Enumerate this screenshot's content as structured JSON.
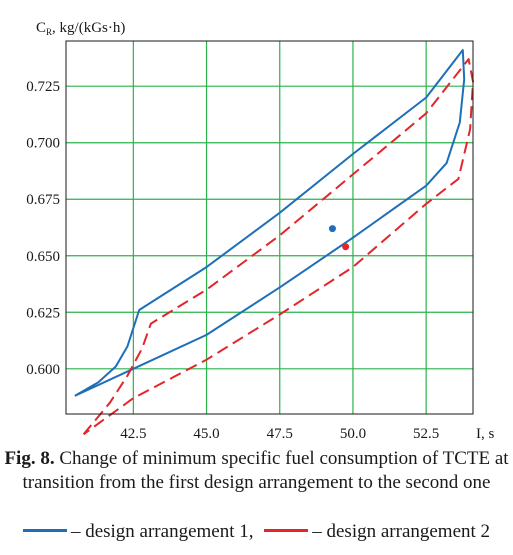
{
  "chart_data": {
    "type": "line",
    "xlabel": "I, s",
    "ylabel": {
      "main": "C",
      "sub": "R",
      "rest": ", kg/(kGs·h)"
    },
    "xlim": [
      40.2,
      54.1
    ],
    "ylim": [
      0.58,
      0.745
    ],
    "xticks": [
      "42.5",
      "45.0",
      "47.5",
      "50.0",
      "52.5"
    ],
    "xtick_values": [
      42.5,
      45.0,
      47.5,
      50.0,
      52.5
    ],
    "yticks": [
      "0.600",
      "0.625",
      "0.650",
      "0.675",
      "0.700",
      "0.725"
    ],
    "ytick_values": [
      0.6,
      0.625,
      0.65,
      0.675,
      0.7,
      0.725
    ],
    "grid": true,
    "grid_color": "#2bb24c",
    "series": [
      {
        "name": "design arrangement 1",
        "color": "#1f6fb8",
        "dash": "solid",
        "upper": [
          [
            40.5,
            0.588
          ],
          [
            41.3,
            0.594
          ],
          [
            41.9,
            0.601
          ],
          [
            42.3,
            0.61
          ],
          [
            42.7,
            0.626
          ],
          [
            45.0,
            0.645
          ],
          [
            47.5,
            0.669
          ],
          [
            50.0,
            0.695
          ],
          [
            52.5,
            0.72
          ],
          [
            53.75,
            0.741
          ]
        ],
        "lower": [
          [
            53.75,
            0.741
          ],
          [
            53.8,
            0.728
          ],
          [
            53.65,
            0.709
          ],
          [
            53.2,
            0.691
          ],
          [
            52.5,
            0.681
          ],
          [
            50.0,
            0.658
          ],
          [
            47.5,
            0.636
          ],
          [
            45.0,
            0.615
          ],
          [
            42.5,
            0.6
          ],
          [
            40.5,
            0.588
          ]
        ],
        "optimum": [
          49.3,
          0.662
        ]
      },
      {
        "name": "design arrangement 2",
        "color": "#e3262b",
        "dash": "dashed",
        "upper": [
          [
            40.8,
            0.571
          ],
          [
            41.7,
            0.585
          ],
          [
            42.3,
            0.597
          ],
          [
            42.8,
            0.609
          ],
          [
            43.1,
            0.62
          ],
          [
            45.0,
            0.635
          ],
          [
            47.5,
            0.659
          ],
          [
            50.0,
            0.686
          ],
          [
            52.5,
            0.713
          ],
          [
            53.95,
            0.737
          ]
        ],
        "lower": [
          [
            53.95,
            0.737
          ],
          [
            54.1,
            0.727
          ],
          [
            54.0,
            0.706
          ],
          [
            53.6,
            0.684
          ],
          [
            52.5,
            0.673
          ],
          [
            50.0,
            0.645
          ],
          [
            47.5,
            0.624
          ],
          [
            45.0,
            0.604
          ],
          [
            42.5,
            0.587
          ],
          [
            40.8,
            0.571
          ]
        ],
        "optimum": [
          49.75,
          0.654
        ]
      }
    ]
  },
  "caption": {
    "fig_label": "Fig. 8.",
    "text": "Change of minimum specific fuel consumption of TCTE at transition from the first design arrangement to the second one"
  },
  "legend": {
    "item1": "– design arrangement 1,",
    "item2": "– design arrangement 2"
  }
}
